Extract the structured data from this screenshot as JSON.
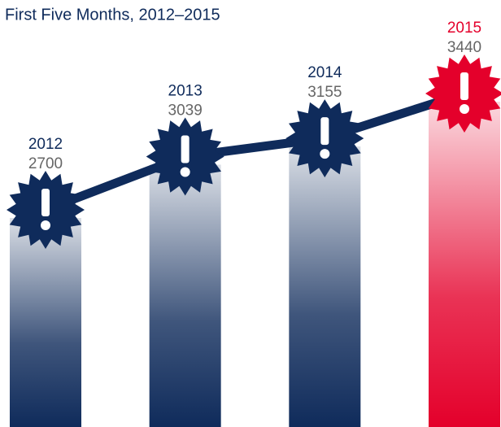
{
  "chart_data": {
    "type": "bar",
    "title": "First Five Months, 2012–2015",
    "categories": [
      "2012",
      "2013",
      "2014",
      "2015"
    ],
    "values": [
      2700,
      3039,
      3155,
      3440
    ],
    "colors": [
      "#0f2b5b",
      "#0f2b5b",
      "#0f2b5b",
      "#e4002b"
    ],
    "line_color": "#0f2b5b"
  }
}
